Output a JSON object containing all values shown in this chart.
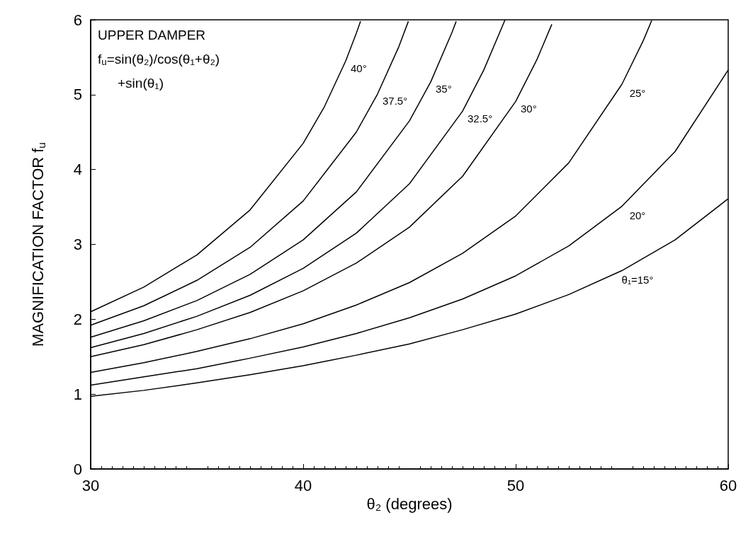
{
  "chart_data": {
    "type": "line",
    "xlabel": "θ₂ (degrees)",
    "ylabel": "MAGNIFICATION FACTOR f$_{u}$",
    "xlim": [
      30,
      60
    ],
    "xticks": [
      30,
      40,
      50,
      60
    ],
    "ylim": [
      0,
      6
    ],
    "yticks": [
      0,
      1,
      2,
      3,
      4,
      5,
      6
    ],
    "grid": false,
    "legend": false,
    "marker": "none",
    "line_style": "solid",
    "annotations": [
      "UPPER DAMPER",
      "f$_{u}$=sin(θ₂)/cos(θ₁+θ₂)",
      "+sin(θ₁)"
    ],
    "series": [
      {
        "name": "40°",
        "color": "#000000",
        "x": [
          30,
          32.5,
          35,
          37.5,
          40,
          41,
          42,
          42.5,
          42.7
        ],
        "values": [
          2.1,
          2.43,
          2.86,
          3.46,
          4.35,
          4.84,
          5.45,
          5.82,
          5.98
        ]
      },
      {
        "name": "37.5°",
        "color": "#000000",
        "x": [
          30,
          32.5,
          35,
          37.5,
          40,
          42.5,
          43.5,
          44.5,
          44.95
        ],
        "values": [
          1.92,
          2.18,
          2.52,
          2.96,
          3.58,
          4.5,
          5.01,
          5.64,
          5.98
        ]
      },
      {
        "name": "35°",
        "color": "#000000",
        "x": [
          30,
          32.5,
          35,
          37.5,
          40,
          42.5,
          45,
          46,
          47,
          47.2
        ],
        "values": [
          1.76,
          1.98,
          2.25,
          2.6,
          3.06,
          3.7,
          4.65,
          5.17,
          5.83,
          5.98
        ]
      },
      {
        "name": "32.5°",
        "color": "#000000",
        "x": [
          30,
          32.5,
          35,
          37.5,
          40,
          42.5,
          45,
          47.5,
          48.5,
          49.5
        ],
        "values": [
          1.62,
          1.81,
          2.04,
          2.32,
          2.68,
          3.15,
          3.81,
          4.78,
          5.33,
          6.0
        ]
      },
      {
        "name": "30°",
        "color": "#000000",
        "x": [
          30,
          32.5,
          35,
          37.5,
          40,
          42.5,
          45,
          47.5,
          50,
          51,
          51.7
        ],
        "values": [
          1.5,
          1.66,
          1.86,
          2.09,
          2.38,
          2.75,
          3.23,
          3.91,
          4.91,
          5.47,
          5.94
        ]
      },
      {
        "name": "25°",
        "color": "#000000",
        "x": [
          30,
          32.5,
          35,
          37.5,
          40,
          42.5,
          45,
          47.5,
          50,
          52.5,
          55,
          56,
          56.4
        ],
        "values": [
          1.29,
          1.42,
          1.57,
          1.74,
          1.94,
          2.19,
          2.49,
          2.88,
          3.38,
          4.09,
          5.14,
          5.72,
          5.99
        ]
      },
      {
        "name": "20°",
        "color": "#000000",
        "x": [
          30,
          32.5,
          35,
          37.5,
          40,
          42.5,
          45,
          47.5,
          50,
          52.5,
          55,
          57.5,
          60
        ],
        "values": [
          1.12,
          1.23,
          1.34,
          1.48,
          1.63,
          1.81,
          2.02,
          2.27,
          2.58,
          2.98,
          3.51,
          4.24,
          5.33
        ]
      },
      {
        "name": "θ₁=15°",
        "color": "#000000",
        "x": [
          30,
          32.5,
          35,
          37.5,
          40,
          42.5,
          45,
          47.5,
          50,
          52.5,
          55,
          57.5,
          60
        ],
        "values": [
          0.97,
          1.05,
          1.15,
          1.26,
          1.38,
          1.52,
          1.67,
          1.86,
          2.07,
          2.33,
          2.65,
          3.06,
          3.61
        ]
      }
    ]
  }
}
